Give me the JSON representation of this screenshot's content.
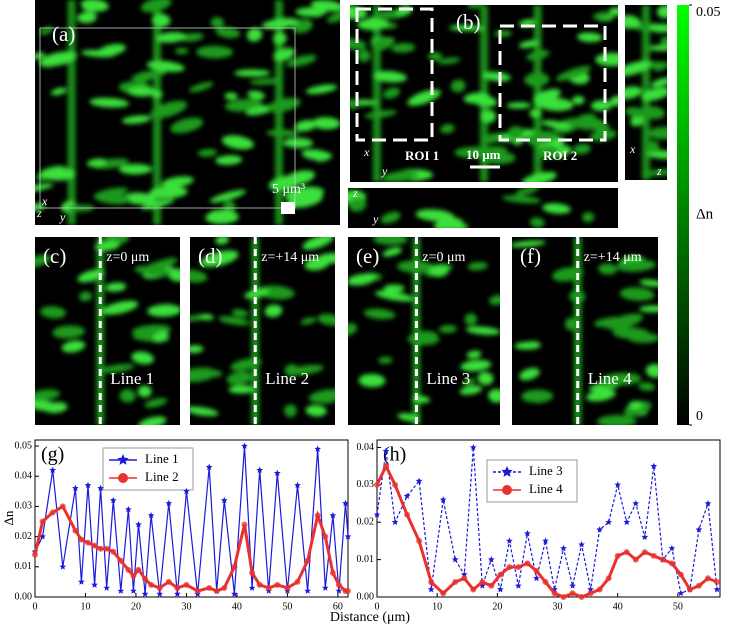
{
  "panels": [
    {
      "label": "(a)",
      "texts": [
        "5 μm³",
        "x",
        "z",
        "y"
      ]
    },
    {
      "label": "(b)",
      "texts": [
        "ROI 1",
        "10 μm",
        "ROI 2",
        "x",
        "y"
      ]
    },
    {
      "texts": [
        "x",
        "z"
      ]
    },
    {
      "texts": [
        "z",
        "y"
      ]
    },
    {
      "label": "(c)",
      "texts": [
        "z=0 μm",
        "Line 1"
      ]
    },
    {
      "label": "(d)",
      "texts": [
        "z=+14 μm",
        "Line 2"
      ]
    },
    {
      "label": "(e)",
      "texts": [
        "z=0 μm",
        "Line 3"
      ]
    },
    {
      "label": "(f)",
      "texts": [
        "z=+14 μm",
        "Line 4"
      ]
    }
  ],
  "colorbar": {
    "label": "Δn",
    "lim": [
      0,
      0.05
    ],
    "ticks": [
      0.05,
      0
    ],
    "colors": [
      "#000000",
      "#00ff00"
    ]
  },
  "chart_data": [
    {
      "type": "line",
      "title": "(g)",
      "xlabel": "Distance (μm)",
      "ylabel": "Δn",
      "x": [
        0,
        1.5,
        3.5,
        5.5,
        8,
        9.2,
        10.5,
        11.8,
        13,
        14.2,
        15.5,
        17,
        18.5,
        19.5,
        20.5,
        21.8,
        23,
        24.7,
        26.5,
        28.2,
        30,
        32.2,
        34.5,
        36,
        37.5,
        39.5,
        41.5,
        43,
        44.5,
        46.3,
        48,
        50,
        52,
        54,
        56,
        57.5,
        59,
        60.2,
        61.5,
        62
      ],
      "series": [
        {
          "name": "Line 1",
          "color": "#1a1adb",
          "marker": "star",
          "linestyle": "solid",
          "values": [
            0.015,
            0.02,
            0.042,
            0.01,
            0.036,
            0.005,
            0.037,
            0.004,
            0.036,
            0.003,
            0.032,
            0.002,
            0.029,
            0.002,
            0.024,
            0.001,
            0.027,
            0.001,
            0.031,
            0.001,
            0.035,
            0.001,
            0.043,
            0.002,
            0.032,
            0.001,
            0.05,
            0.003,
            0.042,
            0.002,
            0.041,
            0.002,
            0.037,
            0.002,
            0.049,
            0.003,
            0.027,
            0.002,
            0.031,
            0.02
          ]
        },
        {
          "name": "Line 2",
          "color": "#e8322e",
          "marker": "circle",
          "linestyle": "solid",
          "values": [
            0.014,
            0.025,
            0.028,
            0.03,
            0.022,
            0.019,
            0.018,
            0.017,
            0.016,
            0.016,
            0.015,
            0.012,
            0.009,
            0.007,
            0.009,
            0.006,
            0.004,
            0.003,
            0.005,
            0.003,
            0.004,
            0.002,
            0.003,
            0.002,
            0.003,
            0.01,
            0.024,
            0.008,
            0.004,
            0.003,
            0.004,
            0.003,
            0.005,
            0.012,
            0.027,
            0.02,
            0.008,
            0.004,
            0.002,
            0.002
          ]
        }
      ],
      "xlim": [
        0,
        62
      ],
      "xticks": [
        0,
        10,
        20,
        30,
        40,
        50,
        60
      ],
      "ylim": [
        0,
        0.052
      ],
      "yticks": [
        {
          "value": 0,
          "label": "0.00"
        },
        0.01,
        0.02,
        0.03,
        0.04,
        0.05
      ]
    },
    {
      "type": "line",
      "title": "(h)",
      "x": [
        0,
        1.5,
        3,
        5,
        7,
        9,
        11,
        13,
        14.5,
        16,
        17.5,
        19,
        20.5,
        22,
        23.5,
        25,
        26.5,
        28,
        29.5,
        31,
        32.5,
        34,
        35.5,
        37,
        38.5,
        40,
        41.5,
        43,
        44.5,
        46,
        47.5,
        49,
        50.5,
        52,
        53.5,
        55,
        56.5
      ],
      "series": [
        {
          "name": "Line 3",
          "color": "#1a1adb",
          "marker": "star",
          "linestyle": "dashed",
          "values": [
            0.022,
            0.039,
            0.02,
            0.027,
            0.031,
            0.002,
            0.026,
            0.01,
            0.006,
            0.04,
            0.003,
            0.01,
            0.002,
            0.015,
            0.003,
            0.017,
            0.005,
            0.015,
            0.002,
            0.013,
            0.003,
            0.014,
            0.002,
            0.018,
            0.02,
            0.03,
            0.02,
            0.025,
            0.016,
            0.035,
            0.01,
            0.013,
            0.001,
            0.002,
            0.018,
            0.025,
            0.002
          ]
        },
        {
          "name": "Line 4",
          "color": "#e8322e",
          "marker": "circle",
          "linestyle": "solid",
          "values": [
            0.03,
            0.035,
            0.03,
            0.022,
            0.015,
            0.004,
            0.001,
            0.004,
            0.005,
            0.002,
            0.004,
            0.003,
            0.006,
            0.008,
            0.008,
            0.009,
            0.007,
            0.004,
            0.001,
            0,
            0.001,
            0,
            0.001,
            0.002,
            0.005,
            0.011,
            0.012,
            0.01,
            0.012,
            0.011,
            0.01,
            0.009,
            0.006,
            0.002,
            0.003,
            0.005,
            0.004
          ]
        }
      ],
      "xlim": [
        0,
        57
      ],
      "xticks": [
        0,
        10,
        20,
        30,
        40,
        50
      ],
      "ylim": [
        0,
        0.042
      ],
      "yticks": [
        {
          "value": 0,
          "label": "0.00"
        },
        0.01,
        0.02,
        0.03,
        0.04
      ]
    }
  ]
}
